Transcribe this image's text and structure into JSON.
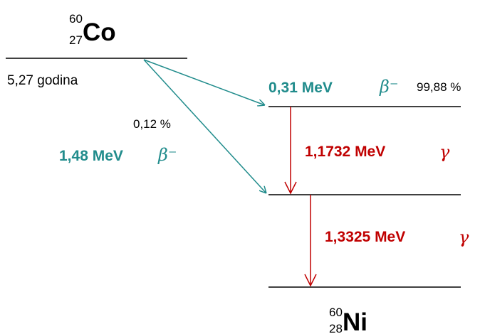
{
  "parent": {
    "mass": "60",
    "atomic": "27",
    "symbol": "Co",
    "half_life": "5,27 godina"
  },
  "daughter": {
    "mass": "60",
    "atomic": "28",
    "symbol": "Ni"
  },
  "beta_decays": [
    {
      "energy": "0,31 MeV",
      "symbol": "β⁻",
      "branching": "99,88 %"
    },
    {
      "energy": "1,48 MeV",
      "symbol": "β⁻",
      "branching": "0,12 %"
    }
  ],
  "gamma_transitions": [
    {
      "energy": "1,1732 MeV",
      "symbol": "γ"
    },
    {
      "energy": "1,3325 MeV",
      "symbol": "γ"
    }
  ],
  "colors": {
    "beta": "#218C8C",
    "gamma": "#C00000",
    "levels": "#000000"
  }
}
